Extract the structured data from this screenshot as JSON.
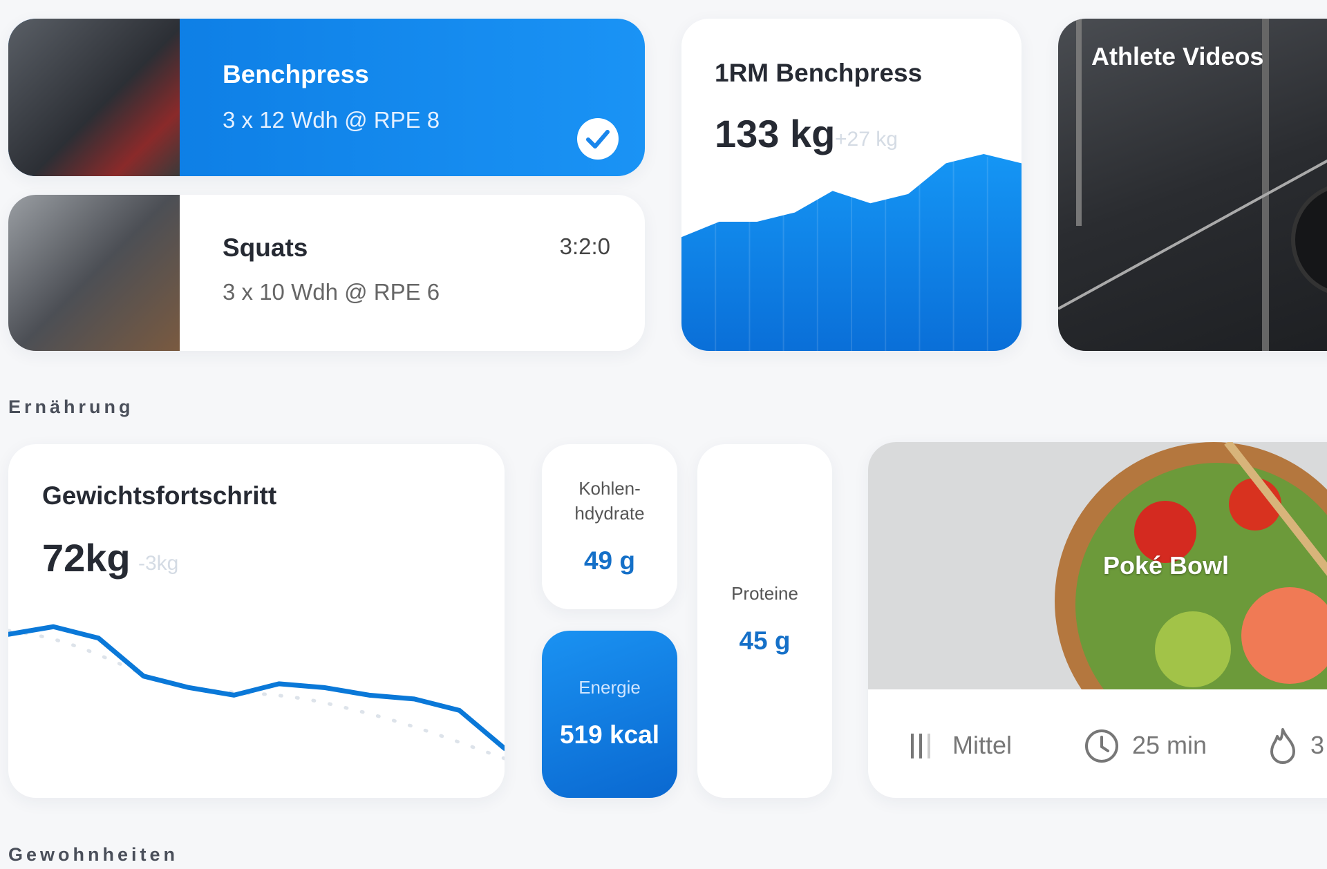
{
  "workouts": [
    {
      "title": "Benchpress",
      "detail": "3 x 12 Wdh @ RPE 8"
    },
    {
      "title": "Squats",
      "detail": "3 x 10 Wdh @ RPE 6",
      "timer": "3:2:0"
    }
  ],
  "one_rm": {
    "title": "1RM Benchpress",
    "value": "133 kg",
    "delta": "+27 kg",
    "values": [
      106,
      111,
      111,
      114,
      121,
      117,
      120,
      130,
      133,
      130
    ],
    "ylim": [
      69,
      177
    ],
    "color": "#0a84f0"
  },
  "videos": {
    "title": "Athlete Videos"
  },
  "sections": [
    "Ernährung",
    "Gewohnheiten"
  ],
  "weight": {
    "title": "Gewichtsfortschritt",
    "value": "72kg",
    "delta": "-3kg",
    "values": [
      75,
      75.2,
      74.9,
      73.9,
      73.6,
      73.4,
      73.7,
      73.6,
      73.4,
      73.3,
      73.0,
      72
    ],
    "ylim": [
      70.7,
      80
    ],
    "color": "#0a78d8"
  },
  "nutrition": {
    "carbs": {
      "label": [
        "Kohlen-",
        "hdydrate"
      ],
      "value": "49 g"
    },
    "energy": {
      "label": "Energie",
      "value": "519 kcal"
    },
    "protein": {
      "label": "Proteine",
      "value": "45 g"
    }
  },
  "meal": {
    "title": "Poké Bowl",
    "difficulty": "Mittel",
    "time": "25 min",
    "calories": "3"
  }
}
